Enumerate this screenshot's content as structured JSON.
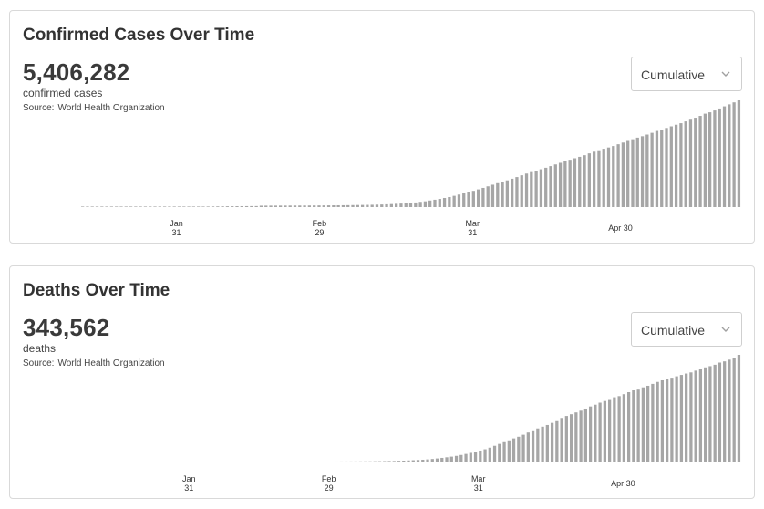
{
  "cards": [
    {
      "title": "Confirmed Cases Over Time",
      "total": "5,406,282",
      "unit": "confirmed cases",
      "source_label": "Source:",
      "source": "World Health Organization",
      "dropdown": {
        "selected": "Cumulative"
      },
      "icons": {
        "dropdown": "chevron-down-icon"
      }
    },
    {
      "title": "Deaths Over Time",
      "total": "343,562",
      "unit": "deaths",
      "source_label": "Source:",
      "source": "World Health Organization",
      "dropdown": {
        "selected": "Cumulative"
      },
      "icons": {
        "dropdown": "chevron-down-icon"
      }
    }
  ],
  "colors": {
    "bar": "#a6a6a6",
    "border": "#d9d9d9",
    "text": "#3c3c3c"
  },
  "chart_data": [
    {
      "type": "bar",
      "title": "Confirmed Cases Over Time",
      "xlabel": "",
      "ylabel": "",
      "grid": false,
      "legend": "none",
      "ylim": [
        0,
        5406282
      ],
      "x_start": "2020-01-12",
      "x_end": "2020-05-24",
      "x_ticks": [
        {
          "month": "Jan",
          "day": "31"
        },
        {
          "month": "Feb",
          "day": "29"
        },
        {
          "month": "Mar",
          "day": "31"
        },
        {
          "month": "Apr 30",
          "day": ""
        }
      ],
      "series": [
        {
          "values": [
            41,
            41,
            41,
            45,
            45,
            45,
            45,
            45,
            45,
            45,
            282,
            314,
            581,
            846,
            1320,
            2014,
            2798,
            4593,
            6065,
            7818,
            9826,
            11953,
            14557,
            17391,
            20630,
            24554,
            28276,
            31481,
            34886,
            37558,
            40554,
            43103,
            45171,
            46997,
            49053,
            50580,
            51857,
            71429,
            73332,
            75204,
            75748,
            76769,
            77794,
            78811,
            79331,
            80239,
            81109,
            82294,
            83652,
            85403,
            87137,
            88948,
            90869,
            93091,
            95324,
            98192,
            102050,
            106166,
            109578,
            113702,
            118319,
            125260,
            132758,
            142534,
            153517,
            167511,
            179111,
            191127,
            209839,
            234073,
            266073,
            292142,
            332930,
            372757,
            414179,
            462684,
            509164,
            571678,
            634835,
            693224,
            750890,
            823626,
            896450,
            972303,
            1051635,
            1133758,
            1210956,
            1279722,
            1353361,
            1436198,
            1521252,
            1610909,
            1696588,
            1773084,
            1844863,
            1914916,
            1991562,
            2074529,
            2160207,
            2241778,
            2314621,
            2396477,
            2472259,
            2544792,
            2626321,
            2719896,
            2804796,
            2878196,
            2954222,
            3018952,
            3090445,
            3181642,
            3267184,
            3349786,
            3435894,
            3517345,
            3588773,
            3672238,
            3759967,
            3855788,
            3917366,
            4006257,
            4088848,
            4170424,
            4248389,
            4338658,
            4425485,
            4525497,
            4618821,
            4731458,
            4801202,
            4893186,
            4993470,
            5103006,
            5204508,
            5304772,
            5406282
          ]
        }
      ]
    },
    {
      "type": "bar",
      "title": "Deaths Over Time",
      "xlabel": "",
      "ylabel": "",
      "grid": false,
      "legend": "none",
      "ylim": [
        0,
        343562
      ],
      "x_start": "2020-01-12",
      "x_end": "2020-05-24",
      "x_ticks": [
        {
          "month": "Jan",
          "day": "31"
        },
        {
          "month": "Feb",
          "day": "29"
        },
        {
          "month": "Mar",
          "day": "31"
        },
        {
          "month": "Apr 30",
          "day": ""
        }
      ],
      "series": [
        {
          "values": [
            1,
            1,
            1,
            1,
            1,
            1,
            1,
            2,
            2,
            3,
            6,
            6,
            17,
            25,
            41,
            56,
            80,
            106,
            132,
            170,
            213,
            259,
            304,
            362,
            426,
            492,
            565,
            638,
            724,
            813,
            910,
            1018,
            1115,
            1261,
            1383,
            1526,
            1669,
            1775,
            1873,
            2009,
            2126,
            2247,
            2360,
            2460,
            2618,
            2699,
            2763,
            2800,
            2858,
            2924,
            2977,
            3050,
            3117,
            3202,
            3285,
            3387,
            3494,
            3599,
            3827,
            4030,
            4262,
            4615,
            4720,
            5330,
            5833,
            6500,
            7158,
            7905,
            8778,
            9840,
            11188,
            12783,
            14652,
            16558,
            18591,
            21031,
            23971,
            27241,
            30663,
            34290,
            37949,
            42107,
            47241,
            53190,
            59213,
            64734,
            70590,
            76767,
            82074,
            88465,
            95487,
            102525,
            108502,
            114091,
            119480,
            126140,
            134603,
            141919,
            148240,
            153826,
            159511,
            165069,
            171810,
            178578,
            184217,
            190645,
            195920,
            202182,
            207973,
            211606,
            217769,
            224172,
            230797,
            235290,
            239604,
            244663,
            250687,
            256963,
            262108,
            265862,
            270426,
            274898,
            279311,
            283734,
            287399,
            293009,
            297197,
            303413,
            307395,
            311847,
            318789,
            322641,
            328115,
            334621,
            343562
          ]
        }
      ]
    }
  ]
}
